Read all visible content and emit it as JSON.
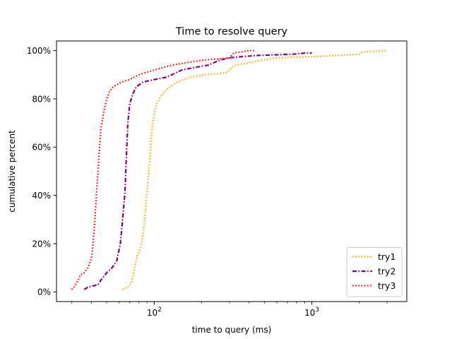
{
  "chart_data": {
    "type": "line",
    "title": "Time to resolve query",
    "xlabel": "time to query (ms)",
    "ylabel": "cumulative percent",
    "xscale": "log",
    "xlim": [
      24,
      4000
    ],
    "ylim": [
      -0.04,
      1.04
    ],
    "x_ticks": [
      {
        "value": 100,
        "base": "10",
        "exp": "2"
      },
      {
        "value": 1000,
        "base": "10",
        "exp": "3"
      }
    ],
    "y_ticks": [
      {
        "value": 0,
        "label": "0%"
      },
      {
        "value": 0.2,
        "label": "20%"
      },
      {
        "value": 0.4,
        "label": "40%"
      },
      {
        "value": 0.6,
        "label": "60%"
      },
      {
        "value": 0.8,
        "label": "80%"
      },
      {
        "value": 1.0,
        "label": "100%"
      }
    ],
    "grid": false,
    "legend_position": "bottom-right",
    "series": [
      {
        "name": "try1",
        "color": "#FFA500",
        "style": "dotted",
        "points": [
          [
            63,
            0.01
          ],
          [
            68,
            0.02
          ],
          [
            72,
            0.04
          ],
          [
            75,
            0.1
          ],
          [
            78,
            0.15
          ],
          [
            82,
            0.18
          ],
          [
            85,
            0.24
          ],
          [
            87,
            0.3
          ],
          [
            89,
            0.38
          ],
          [
            91,
            0.45
          ],
          [
            93,
            0.52
          ],
          [
            95,
            0.6
          ],
          [
            97,
            0.68
          ],
          [
            100,
            0.74
          ],
          [
            104,
            0.78
          ],
          [
            110,
            0.81
          ],
          [
            120,
            0.84
          ],
          [
            140,
            0.87
          ],
          [
            170,
            0.89
          ],
          [
            210,
            0.9
          ],
          [
            260,
            0.905
          ],
          [
            290,
            0.91
          ],
          [
            310,
            0.93
          ],
          [
            330,
            0.94
          ],
          [
            400,
            0.95
          ],
          [
            480,
            0.96
          ],
          [
            600,
            0.97
          ],
          [
            800,
            0.973
          ],
          [
            1000,
            0.975
          ],
          [
            1500,
            0.98
          ],
          [
            2000,
            0.985
          ],
          [
            2100,
            0.995
          ],
          [
            3000,
            1.0
          ]
        ]
      },
      {
        "name": "try2",
        "color": "#800080",
        "style": "dashdot",
        "points": [
          [
            36,
            0.01
          ],
          [
            38,
            0.02
          ],
          [
            44,
            0.03
          ],
          [
            46,
            0.05
          ],
          [
            50,
            0.08
          ],
          [
            54,
            0.1
          ],
          [
            58,
            0.13
          ],
          [
            61,
            0.2
          ],
          [
            63,
            0.3
          ],
          [
            65,
            0.4
          ],
          [
            66,
            0.5
          ],
          [
            67,
            0.6
          ],
          [
            68,
            0.7
          ],
          [
            70,
            0.78
          ],
          [
            73,
            0.82
          ],
          [
            77,
            0.85
          ],
          [
            85,
            0.87
          ],
          [
            100,
            0.88
          ],
          [
            120,
            0.89
          ],
          [
            150,
            0.92
          ],
          [
            180,
            0.93
          ],
          [
            220,
            0.94
          ],
          [
            260,
            0.96
          ],
          [
            300,
            0.97
          ],
          [
            360,
            0.975
          ],
          [
            450,
            0.98
          ],
          [
            600,
            0.983
          ],
          [
            750,
            0.985
          ],
          [
            900,
            0.99
          ],
          [
            1000,
            0.99
          ]
        ]
      },
      {
        "name": "try3",
        "color": "#FF0000",
        "style": "dotted",
        "points": [
          [
            30,
            0.01
          ],
          [
            31,
            0.02
          ],
          [
            33,
            0.05
          ],
          [
            34,
            0.07
          ],
          [
            36,
            0.08
          ],
          [
            38,
            0.1
          ],
          [
            40,
            0.14
          ],
          [
            41,
            0.2
          ],
          [
            42,
            0.3
          ],
          [
            43,
            0.4
          ],
          [
            44,
            0.5
          ],
          [
            45,
            0.6
          ],
          [
            46,
            0.68
          ],
          [
            48,
            0.75
          ],
          [
            50,
            0.8
          ],
          [
            52,
            0.83
          ],
          [
            55,
            0.85
          ],
          [
            62,
            0.87
          ],
          [
            70,
            0.88
          ],
          [
            80,
            0.9
          ],
          [
            100,
            0.92
          ],
          [
            130,
            0.94
          ],
          [
            160,
            0.95
          ],
          [
            200,
            0.96
          ],
          [
            250,
            0.965
          ],
          [
            300,
            0.97
          ],
          [
            320,
            0.99
          ],
          [
            400,
            1.0
          ],
          [
            440,
            1.0
          ]
        ]
      }
    ]
  }
}
